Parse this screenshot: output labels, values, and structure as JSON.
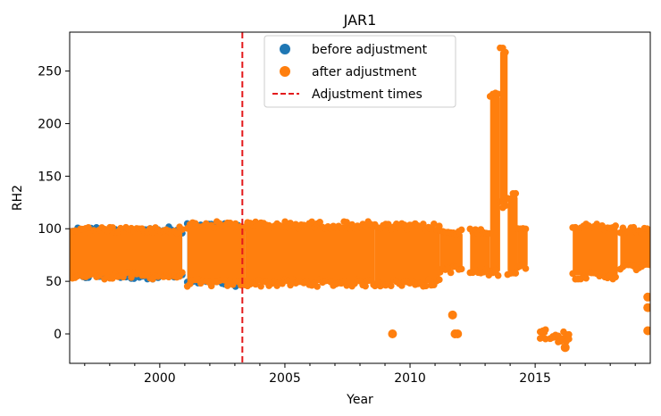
{
  "chart_data": {
    "type": "scatter",
    "title": "JAR1",
    "xlabel": "Year",
    "ylabel": "RH2",
    "xlim": [
      1996.4,
      2019.6
    ],
    "ylim": [
      -28,
      287
    ],
    "x_ticks": [
      2000,
      2005,
      2010,
      2015
    ],
    "x_tick_labels": [
      "2000",
      "2005",
      "2010",
      "2015"
    ],
    "y_ticks": [
      0,
      50,
      100,
      150,
      200,
      250
    ],
    "y_tick_labels": [
      "0",
      "50",
      "100",
      "150",
      "200",
      "250"
    ],
    "grid": false,
    "legend_position": "upper-center",
    "series": [
      {
        "name": "before adjustment",
        "color": "#1f77b4",
        "marker": "circle",
        "bands": [
          {
            "x": [
              1996.4,
              2000.9
            ],
            "low": 52,
            "high": 102
          },
          {
            "x": [
              2001.1,
              2003.4
            ],
            "low": 45,
            "high": 105
          }
        ],
        "points": []
      },
      {
        "name": "after adjustment",
        "color": "#ff7f0e",
        "marker": "circle",
        "bands": [
          {
            "x": [
              1996.4,
              2000.9
            ],
            "low": 52,
            "high": 102
          },
          {
            "x": [
              2001.1,
              2003.4
            ],
            "low": 45,
            "high": 107
          },
          {
            "x": [
              2003.4,
              2008.6
            ],
            "low": 45,
            "high": 107
          },
          {
            "x": [
              2008.6,
              2011.2
            ],
            "low": 45,
            "high": 105
          },
          {
            "x": [
              2011.2,
              2012.1
            ],
            "low": 58,
            "high": 100
          },
          {
            "x": [
              2012.4,
              2013.2
            ],
            "low": 55,
            "high": 102
          },
          {
            "x": [
              2013.2,
              2013.6
            ],
            "low": 55,
            "high": 230
          },
          {
            "x": [
              2013.6,
              2013.9
            ],
            "low": 120,
            "high": 273
          },
          {
            "x": [
              2013.9,
              2014.3
            ],
            "low": 55,
            "high": 135
          },
          {
            "x": [
              2014.3,
              2014.7
            ],
            "low": 60,
            "high": 105
          },
          {
            "x": [
              2015.2,
              2015.5
            ],
            "low": -5,
            "high": 7
          },
          {
            "x": [
              2015.6,
              2016.4
            ],
            "low": -8,
            "high": 2
          },
          {
            "x": [
              2016.5,
              2018.3
            ],
            "low": 52,
            "high": 105
          },
          {
            "x": [
              2018.4,
              2019.6
            ],
            "low": 60,
            "high": 102
          }
        ],
        "points": [
          {
            "x": 2009.3,
            "y": 0
          },
          {
            "x": 2011.7,
            "y": 18
          },
          {
            "x": 2011.8,
            "y": 0
          },
          {
            "x": 2011.9,
            "y": 0
          },
          {
            "x": 2016.2,
            "y": -13
          },
          {
            "x": 2019.5,
            "y": 25
          },
          {
            "x": 2019.5,
            "y": 35
          },
          {
            "x": 2019.5,
            "y": 3
          }
        ]
      }
    ],
    "vlines": [
      {
        "name": "Adjustment times",
        "x": 2003.3,
        "color": "#e31a1c",
        "style": "dashed"
      }
    ]
  }
}
